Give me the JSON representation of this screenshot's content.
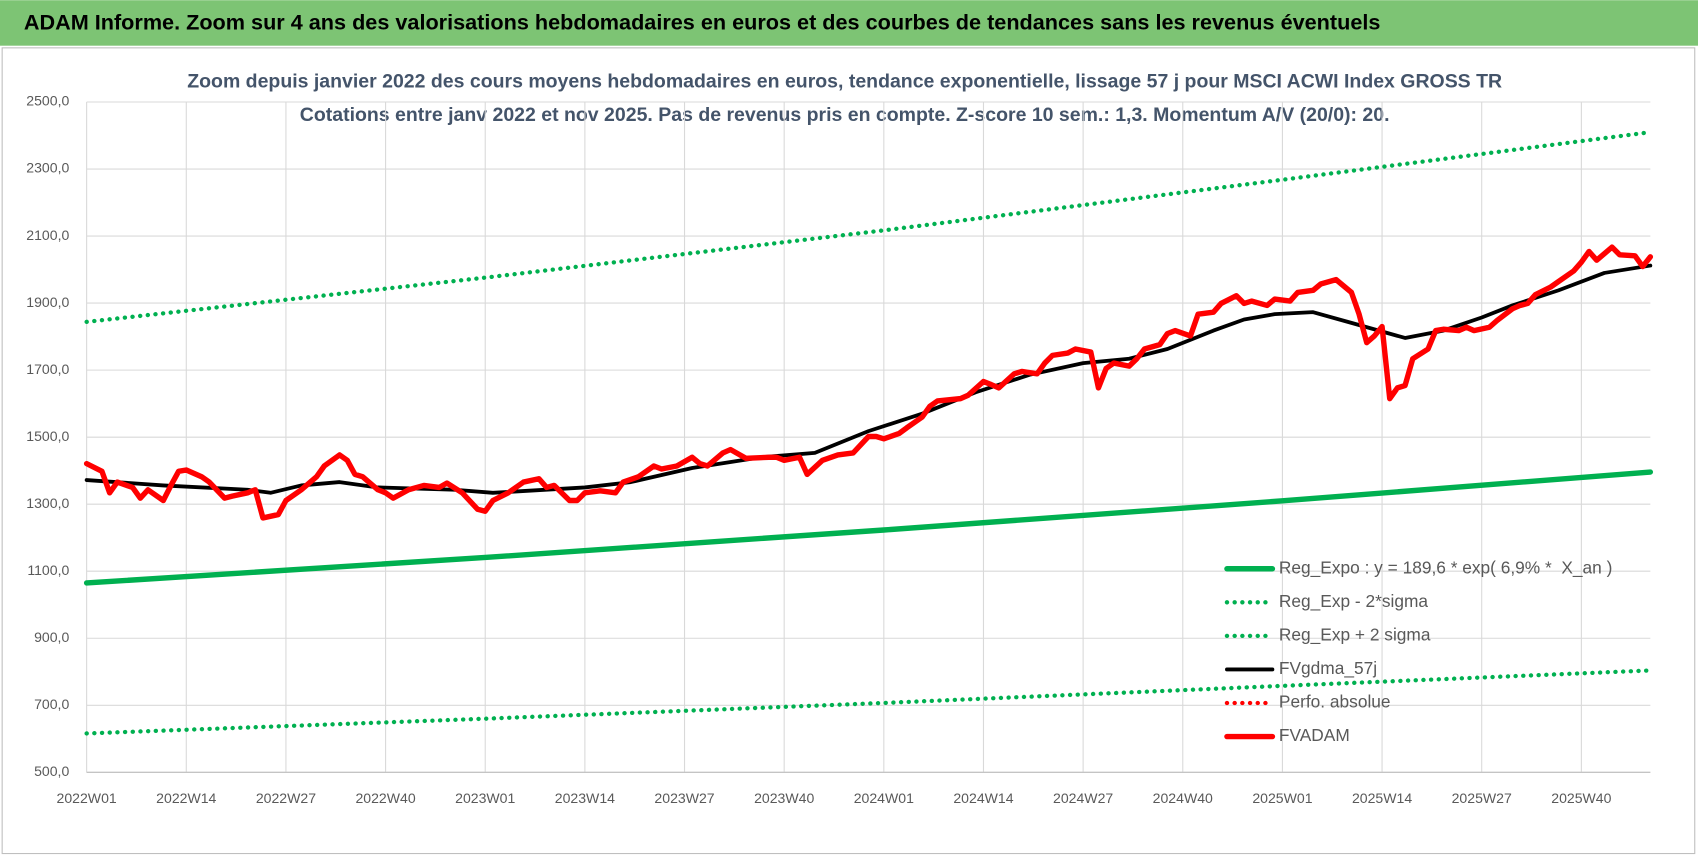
{
  "header": {
    "title": "ADAM Informe. Zoom sur 4 ans des valorisations hebdomadaires en euros et des courbes de tendances sans les revenus éventuels"
  },
  "chart_data": {
    "type": "line",
    "title": "Zoom depuis janvier 2022 des cours moyens hebdomadaires en euros, tendance exponentielle, lissage 57 j pour MSCI ACWI Index GROSS TR",
    "subtitle": "Cotations entre janv 2022 et nov 2025. Pas de revenus pris en compte. Z-score 10 sem.: 1,3. Momentum A/V (20/0): 20.",
    "xlim": [
      0,
      204
    ],
    "xticks": [
      {
        "value": 0,
        "label": "2022W01"
      },
      {
        "value": 13,
        "label": "2022W14"
      },
      {
        "value": 26,
        "label": "2022W27"
      },
      {
        "value": 39,
        "label": "2022W40"
      },
      {
        "value": 52,
        "label": "2023W01"
      },
      {
        "value": 65,
        "label": "2023W14"
      },
      {
        "value": 78,
        "label": "2023W27"
      },
      {
        "value": 91,
        "label": "2023W40"
      },
      {
        "value": 104,
        "label": "2024W01"
      },
      {
        "value": 117,
        "label": "2024W14"
      },
      {
        "value": 130,
        "label": "2024W27"
      },
      {
        "value": 143,
        "label": "2024W40"
      },
      {
        "value": 156,
        "label": "2025W01"
      },
      {
        "value": 169,
        "label": "2025W14"
      },
      {
        "value": 182,
        "label": "2025W27"
      },
      {
        "value": 195,
        "label": "2025W40"
      }
    ],
    "ylim": [
      500,
      2500
    ],
    "yticks": [
      {
        "value": 500,
        "label": "500,0"
      },
      {
        "value": 700,
        "label": "700,0"
      },
      {
        "value": 900,
        "label": "900,0"
      },
      {
        "value": 1100,
        "label": "1100,0"
      },
      {
        "value": 1300,
        "label": "1300,0"
      },
      {
        "value": 1500,
        "label": "1500,0"
      },
      {
        "value": 1700,
        "label": "1700,0"
      },
      {
        "value": 1900,
        "label": "1900,0"
      },
      {
        "value": 2100,
        "label": "2100,0"
      },
      {
        "value": 2300,
        "label": "2300,0"
      },
      {
        "value": 2500,
        "label": "2500,0"
      }
    ],
    "grid": true,
    "legend": "lower right",
    "series": [
      {
        "name": "Reg_Expo : y = 189,6 * exp( 6,9% *  X_an )",
        "color": "#00b050",
        "style": "solid",
        "x": [
          0,
          52,
          104,
          156,
          204
        ],
        "values": [
          1065,
          1141,
          1223,
          1310,
          1396
        ]
      },
      {
        "name": "Reg_Exp - 2*sigma",
        "color": "#00b050",
        "style": "dotted",
        "x": [
          0,
          52,
          104,
          156,
          204
        ],
        "values": [
          616,
          660,
          707,
          758,
          804
        ]
      },
      {
        "name": "Reg_Exp + 2 sigma",
        "color": "#00b050",
        "style": "dotted",
        "x": [
          0,
          52,
          104,
          156,
          204
        ],
        "values": [
          1844,
          1976,
          2117,
          2268,
          2410
        ]
      },
      {
        "name": "FVgdma_57j",
        "color": "#000000",
        "style": "solid",
        "x": [
          0,
          10,
          21,
          24,
          28,
          33,
          38,
          48,
          53,
          65,
          71,
          79,
          88,
          95,
          102,
          109,
          116,
          123,
          130,
          136,
          141,
          147,
          151,
          155,
          160,
          165,
          172,
          177,
          182,
          186,
          192,
          198,
          204
        ],
        "values": [
          1372,
          1356,
          1343,
          1334,
          1356,
          1366,
          1350,
          1343,
          1334,
          1350,
          1366,
          1408,
          1440,
          1453,
          1518,
          1570,
          1634,
          1686,
          1721,
          1734,
          1763,
          1818,
          1851,
          1867,
          1873,
          1841,
          1796,
          1818,
          1857,
          1893,
          1938,
          1990,
          2012
        ]
      },
      {
        "name": "Perfo. absolue",
        "color": "#ff0000",
        "style": "dotted",
        "x": [],
        "values": []
      },
      {
        "name": "FVADAM",
        "color": "#ff0000",
        "style": "solid",
        "x": [
          0,
          2,
          3,
          4,
          6,
          7,
          8,
          10,
          11,
          12,
          13,
          15,
          16,
          18,
          19,
          21,
          22,
          23,
          25,
          26,
          28,
          30,
          31,
          33,
          34,
          35,
          36,
          38,
          39,
          40,
          42,
          44,
          46,
          47,
          49,
          51,
          52,
          53,
          55,
          57,
          59,
          60,
          61,
          63,
          64,
          65,
          67,
          69,
          70,
          72,
          74,
          75,
          77,
          79,
          80,
          81,
          83,
          84,
          86,
          89,
          90,
          91,
          93,
          94,
          96,
          98,
          100,
          102,
          103,
          104,
          106,
          107,
          109,
          110,
          111,
          114,
          115,
          117,
          118,
          119,
          121,
          122,
          124,
          125,
          126,
          128,
          129,
          131,
          132,
          133,
          134,
          136,
          137,
          138,
          140,
          141,
          142,
          144,
          145,
          147,
          148,
          150,
          151,
          152,
          154,
          155,
          157,
          158,
          160,
          161,
          163,
          165,
          166,
          167,
          168,
          169,
          170,
          171,
          172,
          173,
          175,
          176,
          177,
          179,
          180,
          181,
          183,
          184,
          186,
          187,
          188,
          189,
          191,
          192,
          194,
          195,
          196,
          197,
          199,
          200,
          202,
          203,
          204
        ],
        "values": [
          1421,
          1398,
          1334,
          1366,
          1350,
          1318,
          1343,
          1311,
          1356,
          1398,
          1402,
          1382,
          1366,
          1318,
          1324,
          1334,
          1343,
          1259,
          1269,
          1311,
          1343,
          1382,
          1414,
          1447,
          1431,
          1389,
          1382,
          1343,
          1334,
          1318,
          1343,
          1356,
          1350,
          1363,
          1334,
          1285,
          1279,
          1311,
          1334,
          1366,
          1376,
          1350,
          1356,
          1311,
          1311,
          1334,
          1340,
          1334,
          1366,
          1382,
          1414,
          1405,
          1414,
          1440,
          1421,
          1414,
          1453,
          1463,
          1437,
          1440,
          1440,
          1431,
          1440,
          1389,
          1431,
          1447,
          1453,
          1502,
          1502,
          1495,
          1511,
          1528,
          1560,
          1592,
          1608,
          1615,
          1625,
          1666,
          1657,
          1647,
          1689,
          1696,
          1689,
          1721,
          1744,
          1751,
          1763,
          1754,
          1647,
          1705,
          1721,
          1712,
          1734,
          1763,
          1776,
          1809,
          1818,
          1802,
          1867,
          1873,
          1899,
          1922,
          1899,
          1906,
          1893,
          1912,
          1906,
          1932,
          1938,
          1957,
          1970,
          1932,
          1867,
          1782,
          1802,
          1830,
          1615,
          1647,
          1654,
          1734,
          1763,
          1818,
          1822,
          1818,
          1828,
          1818,
          1828,
          1848,
          1883,
          1893,
          1899,
          1925,
          1948,
          1964,
          1996,
          2022,
          2054,
          2028,
          2067,
          2044,
          2041,
          2009,
          2038
        ]
      }
    ]
  }
}
